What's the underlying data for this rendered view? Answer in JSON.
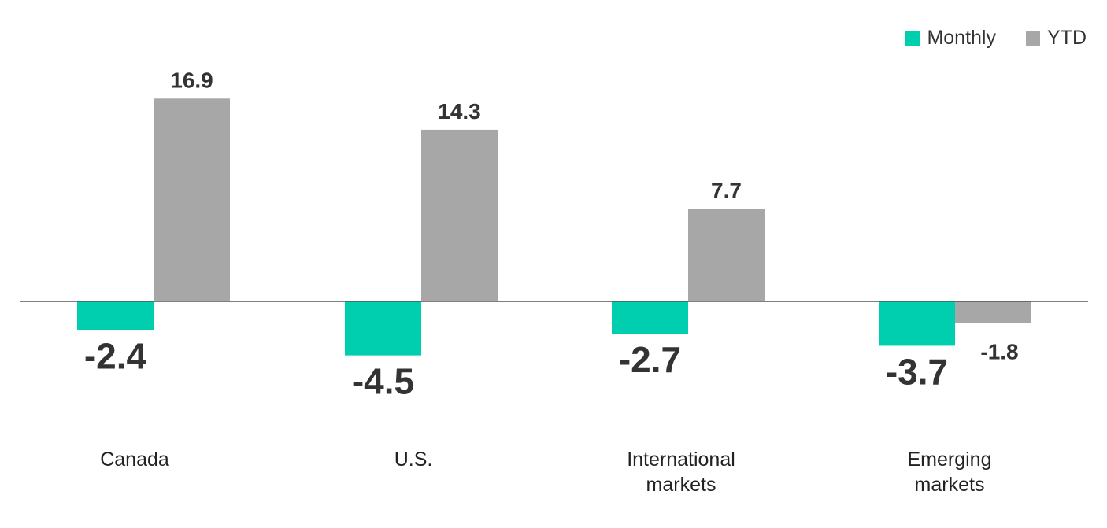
{
  "chart_data": {
    "type": "bar",
    "categories": [
      [
        "Canada"
      ],
      [
        "U.S."
      ],
      [
        "International",
        "markets"
      ],
      [
        "Emerging",
        "markets"
      ]
    ],
    "series": [
      {
        "name": "Monthly",
        "color": "#00CFAF",
        "values": [
          -2.4,
          -4.5,
          -2.7,
          -3.7
        ]
      },
      {
        "name": "YTD",
        "color": "#A7A7A7",
        "values": [
          16.9,
          14.3,
          7.7,
          -1.8
        ]
      }
    ],
    "value_labels": [
      [
        "-2.4",
        "-4.5",
        "-2.7",
        "-3.7"
      ],
      [
        "16.9",
        "14.3",
        "7.7",
        "-1.8"
      ]
    ],
    "ylim": [
      -8,
      20
    ],
    "legend_position": "top-right",
    "grid": false
  }
}
